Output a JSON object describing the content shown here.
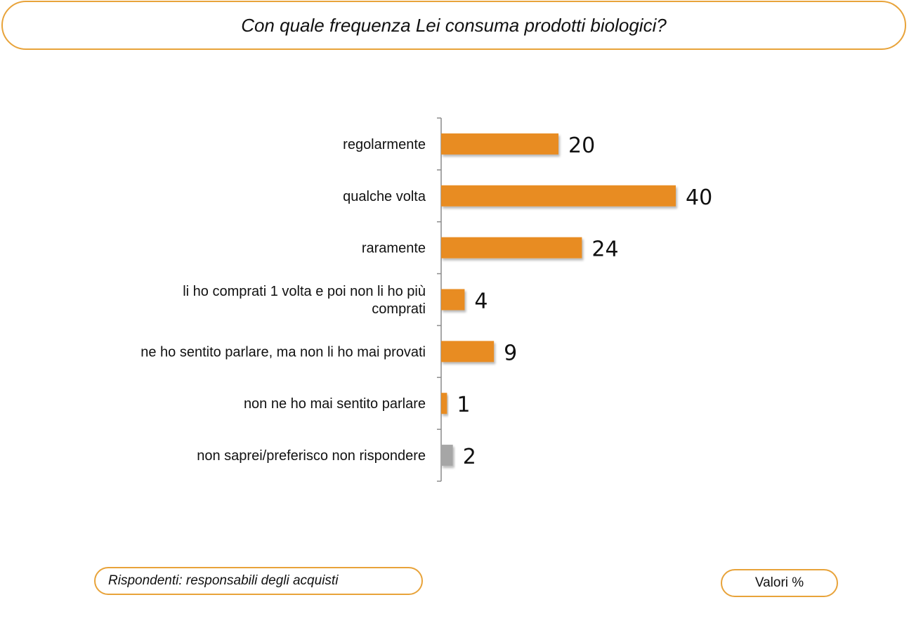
{
  "header": {
    "title": "Con quale frequenza Lei consuma prodotti biologici?"
  },
  "chart_data": {
    "type": "bar",
    "orientation": "horizontal",
    "title": "Con quale frequenza Lei consuma prodotti biologici?",
    "categories": [
      "regolarmente",
      "qualche volta",
      "raramente",
      "li ho comprati 1 volta e poi non li ho più comprati",
      "ne ho sentito parlare, ma non li ho mai provati",
      "non ne ho mai sentito parlare",
      "non saprei/preferisco non rispondere"
    ],
    "category_lines": [
      [
        "regolarmente"
      ],
      [
        "qualche volta"
      ],
      [
        "raramente"
      ],
      [
        "li ho comprati 1 volta e poi non li ho più",
        "comprati"
      ],
      [
        "ne ho sentito parlare, ma non li ho mai provati"
      ],
      [
        "non ne ho mai sentito parlare"
      ],
      [
        "non saprei/preferisco non rispondere"
      ]
    ],
    "values": [
      20,
      40,
      24,
      4,
      9,
      1,
      2
    ],
    "bar_colors": [
      "#e88c20",
      "#e88c20",
      "#e88c20",
      "#e88c20",
      "#e88c20",
      "#e88c20",
      "#a6a6a6"
    ],
    "xlim": [
      0,
      40
    ],
    "data_labels": true,
    "grid": false,
    "legend": "none",
    "xlabel": "",
    "ylabel": ""
  },
  "footer": {
    "respondents": "Rispondenti: responsabili degli acquisti",
    "units": "Valori %"
  },
  "colors": {
    "accent": "#e8a33a",
    "bar": "#e88c20",
    "bar_neutral": "#a6a6a6"
  }
}
